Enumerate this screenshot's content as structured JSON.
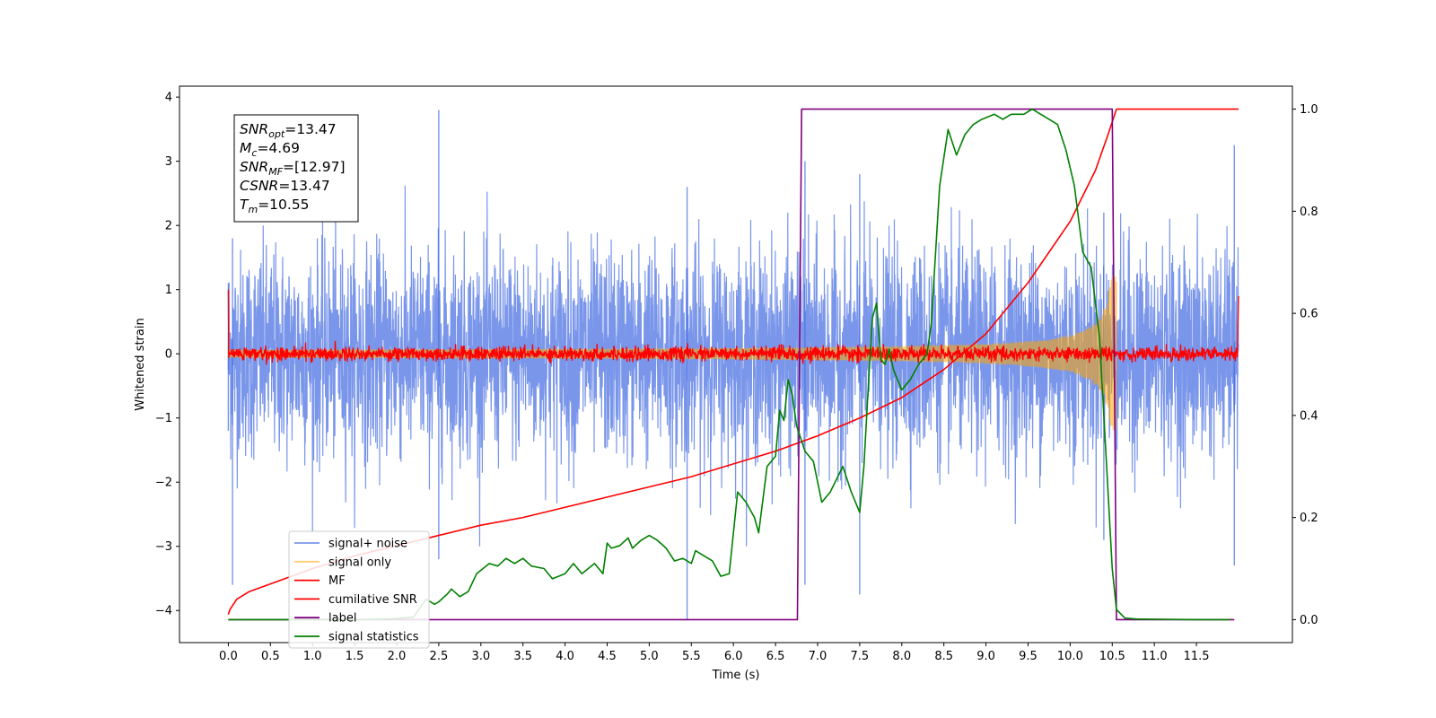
{
  "chart_data": {
    "type": "line",
    "title": "",
    "xlabel": "Time (s)",
    "ylabel": "Whitened strain",
    "y2label": "",
    "xlim": [
      -0.58,
      12.64
    ],
    "ylim": [
      -4.5,
      4.17
    ],
    "y2lim": [
      -0.045,
      1.045
    ],
    "grid": false,
    "legend_position": "lower-left",
    "x_ticks": [
      0.0,
      0.5,
      1.0,
      1.5,
      2.0,
      2.5,
      3.0,
      3.5,
      4.0,
      4.5,
      5.0,
      5.5,
      6.0,
      6.5,
      7.0,
      7.5,
      8.0,
      8.5,
      9.0,
      9.5,
      10.0,
      10.5,
      11.0,
      11.5
    ],
    "x_tick_labels": [
      "0.0",
      "0.5",
      "1.0",
      "1.5",
      "2.0",
      "2.5",
      "3.0",
      "3.5",
      "4.0",
      "4.5",
      "5.0",
      "5.5",
      "6.0",
      "6.5",
      "7.0",
      "7.5",
      "8.0",
      "8.5",
      "9.0",
      "9.5",
      "10.0",
      "10.5",
      "11.0",
      "11.5"
    ],
    "y_ticks": [
      -4,
      -3,
      -2,
      -1,
      0,
      1,
      2,
      3,
      4
    ],
    "y_tick_labels": [
      "−4",
      "−3",
      "−2",
      "−1",
      "0",
      "1",
      "2",
      "3",
      "4"
    ],
    "y2_ticks": [
      0.0,
      0.2,
      0.4,
      0.6,
      0.8,
      1.0
    ],
    "y2_tick_labels": [
      "0.0",
      "0.2",
      "0.4",
      "0.6",
      "0.8",
      "1.0"
    ],
    "annotation": [
      {
        "base": "SNR",
        "sub": "opt",
        "value": "=13.47"
      },
      {
        "base": "M",
        "sub": "c",
        "value": "=4.69"
      },
      {
        "base": "SNR",
        "sub": "MF",
        "value": "=[12.97]"
      },
      {
        "base": "CSNR",
        "sub": "",
        "value": "=13.47"
      },
      {
        "base": "T",
        "sub": "m",
        "value": "=10.55"
      }
    ],
    "series": [
      {
        "name": "signal+ noise",
        "color": "#4169e1",
        "axis": "left",
        "kind": "noise",
        "x_range": [
          0.0,
          12.0
        ],
        "envelope": [
          [
            0.0,
            1.1,
            -1.2
          ],
          [
            0.05,
            1.8,
            -3.6
          ],
          [
            2.5,
            3.8,
            -3.2
          ],
          [
            5.45,
            2.6,
            -4.15
          ],
          [
            6.85,
            3.0,
            -3.6
          ],
          [
            7.5,
            2.8,
            -3.75
          ],
          [
            10.4,
            2.2,
            -2.9
          ],
          [
            11.95,
            3.25,
            -3.3
          ]
        ]
      },
      {
        "name": "signal only",
        "color": "#ffa500",
        "axis": "left",
        "kind": "chirp",
        "x_range": [
          0.0,
          10.55
        ],
        "amp_start": 0.05,
        "amp_peak": 1.25
      },
      {
        "name": "MF",
        "color": "#ff0000",
        "axis": "left",
        "kind": "mf",
        "x_range": [
          0.0,
          12.0
        ],
        "spike_start": 1.0,
        "spike_end": 0.9,
        "band": 0.1
      },
      {
        "name": "cumilative SNR",
        "color": "#ff0000",
        "axis": "right",
        "points": [
          [
            0.0,
            0.01
          ],
          [
            0.02,
            0.02
          ],
          [
            0.1,
            0.04
          ],
          [
            0.25,
            0.055
          ],
          [
            0.5,
            0.07
          ],
          [
            1.0,
            0.1
          ],
          [
            1.5,
            0.125
          ],
          [
            2.0,
            0.145
          ],
          [
            2.5,
            0.165
          ],
          [
            3.0,
            0.185
          ],
          [
            3.5,
            0.2
          ],
          [
            4.0,
            0.22
          ],
          [
            4.5,
            0.24
          ],
          [
            5.0,
            0.26
          ],
          [
            5.5,
            0.28
          ],
          [
            6.0,
            0.305
          ],
          [
            6.5,
            0.33
          ],
          [
            7.0,
            0.36
          ],
          [
            7.5,
            0.395
          ],
          [
            8.0,
            0.435
          ],
          [
            8.5,
            0.49
          ],
          [
            9.0,
            0.56
          ],
          [
            9.5,
            0.66
          ],
          [
            10.0,
            0.78
          ],
          [
            10.3,
            0.88
          ],
          [
            10.45,
            0.95
          ],
          [
            10.55,
            1.0
          ],
          [
            12.0,
            1.0
          ]
        ]
      },
      {
        "name": "label",
        "color": "#800080",
        "axis": "right",
        "points": [
          [
            0.0,
            0.0
          ],
          [
            6.76,
            0.0
          ],
          [
            6.81,
            1.0
          ],
          [
            10.5,
            1.0
          ],
          [
            10.55,
            0.0
          ],
          [
            11.95,
            0.0
          ]
        ]
      },
      {
        "name": "signal statistics",
        "color": "#008000",
        "axis": "right",
        "points": [
          [
            0.0,
            0.0
          ],
          [
            0.5,
            0.0
          ],
          [
            1.0,
            0.0
          ],
          [
            1.5,
            0.0
          ],
          [
            2.0,
            0.002
          ],
          [
            2.2,
            0.005
          ],
          [
            2.35,
            0.04
          ],
          [
            2.4,
            0.035
          ],
          [
            2.45,
            0.03
          ],
          [
            2.5,
            0.035
          ],
          [
            2.6,
            0.05
          ],
          [
            2.65,
            0.06
          ],
          [
            2.75,
            0.045
          ],
          [
            2.85,
            0.055
          ],
          [
            2.95,
            0.09
          ],
          [
            3.1,
            0.11
          ],
          [
            3.2,
            0.105
          ],
          [
            3.3,
            0.12
          ],
          [
            3.4,
            0.11
          ],
          [
            3.5,
            0.12
          ],
          [
            3.6,
            0.105
          ],
          [
            3.75,
            0.1
          ],
          [
            3.85,
            0.08
          ],
          [
            4.0,
            0.09
          ],
          [
            4.1,
            0.11
          ],
          [
            4.2,
            0.09
          ],
          [
            4.35,
            0.11
          ],
          [
            4.45,
            0.09
          ],
          [
            4.5,
            0.15
          ],
          [
            4.55,
            0.14
          ],
          [
            4.65,
            0.145
          ],
          [
            4.75,
            0.16
          ],
          [
            4.8,
            0.14
          ],
          [
            4.9,
            0.155
          ],
          [
            5.0,
            0.165
          ],
          [
            5.1,
            0.155
          ],
          [
            5.2,
            0.14
          ],
          [
            5.3,
            0.115
          ],
          [
            5.4,
            0.12
          ],
          [
            5.5,
            0.11
          ],
          [
            5.55,
            0.135
          ],
          [
            5.65,
            0.125
          ],
          [
            5.75,
            0.115
          ],
          [
            5.85,
            0.085
          ],
          [
            5.95,
            0.09
          ],
          [
            6.05,
            0.25
          ],
          [
            6.15,
            0.23
          ],
          [
            6.25,
            0.2
          ],
          [
            6.3,
            0.17
          ],
          [
            6.4,
            0.3
          ],
          [
            6.5,
            0.32
          ],
          [
            6.55,
            0.41
          ],
          [
            6.6,
            0.39
          ],
          [
            6.65,
            0.47
          ],
          [
            6.7,
            0.44
          ],
          [
            6.75,
            0.38
          ],
          [
            6.85,
            0.33
          ],
          [
            6.95,
            0.31
          ],
          [
            7.05,
            0.23
          ],
          [
            7.15,
            0.25
          ],
          [
            7.3,
            0.3
          ],
          [
            7.4,
            0.25
          ],
          [
            7.5,
            0.21
          ],
          [
            7.55,
            0.3
          ],
          [
            7.6,
            0.45
          ],
          [
            7.65,
            0.59
          ],
          [
            7.7,
            0.62
          ],
          [
            7.75,
            0.51
          ],
          [
            7.8,
            0.5
          ],
          [
            7.85,
            0.53
          ],
          [
            7.9,
            0.49
          ],
          [
            8.0,
            0.45
          ],
          [
            8.1,
            0.47
          ],
          [
            8.2,
            0.5
          ],
          [
            8.3,
            0.52
          ],
          [
            8.35,
            0.58
          ],
          [
            8.45,
            0.85
          ],
          [
            8.55,
            0.96
          ],
          [
            8.65,
            0.91
          ],
          [
            8.75,
            0.95
          ],
          [
            8.85,
            0.97
          ],
          [
            8.95,
            0.98
          ],
          [
            9.1,
            0.99
          ],
          [
            9.2,
            0.98
          ],
          [
            9.3,
            0.99
          ],
          [
            9.45,
            0.99
          ],
          [
            9.55,
            1.0
          ],
          [
            9.65,
            0.99
          ],
          [
            9.75,
            0.98
          ],
          [
            9.85,
            0.97
          ],
          [
            9.95,
            0.92
          ],
          [
            10.05,
            0.85
          ],
          [
            10.15,
            0.72
          ],
          [
            10.25,
            0.69
          ],
          [
            10.35,
            0.55
          ],
          [
            10.45,
            0.25
          ],
          [
            10.5,
            0.1
          ],
          [
            10.55,
            0.02
          ],
          [
            10.65,
            0.003
          ],
          [
            10.8,
            0.001
          ],
          [
            11.5,
            0.0
          ],
          [
            11.9,
            0.0
          ]
        ]
      }
    ]
  }
}
